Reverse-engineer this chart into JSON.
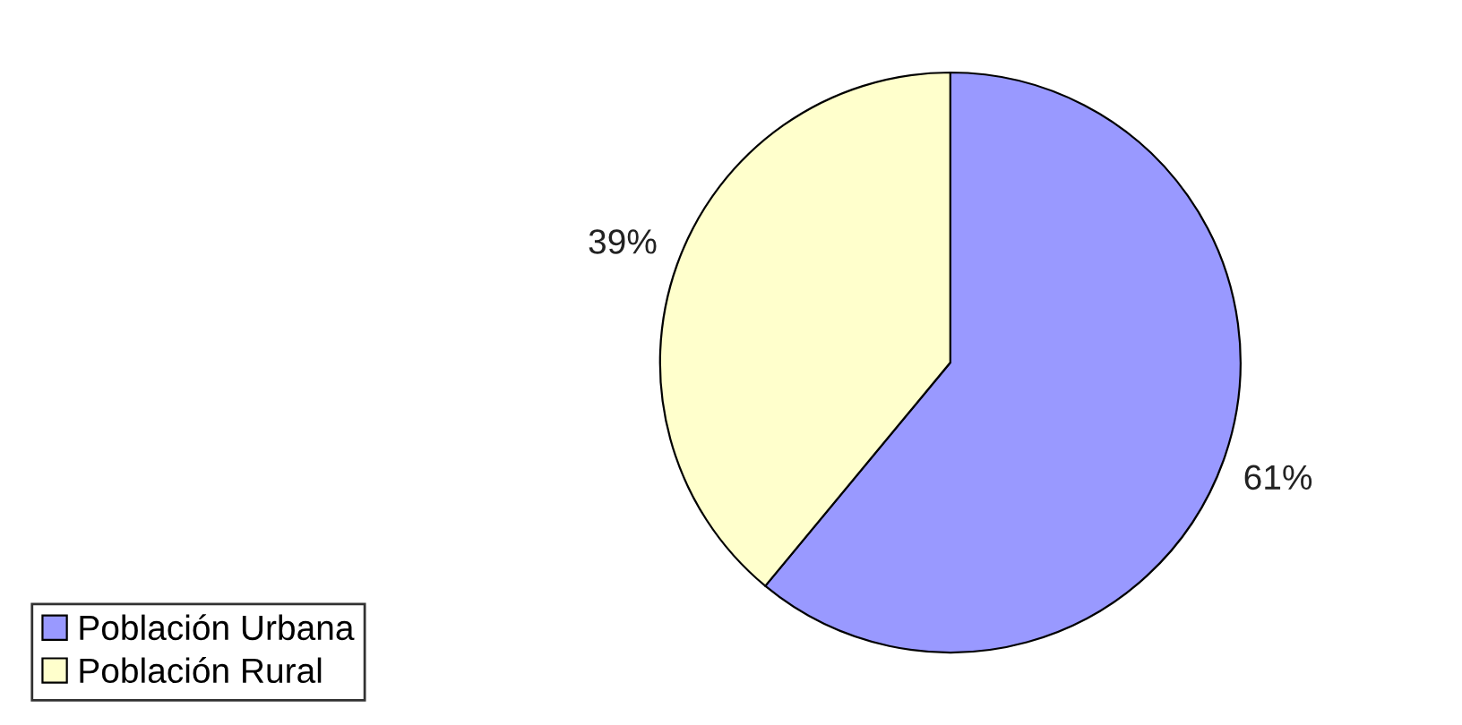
{
  "chart_data": {
    "type": "pie",
    "categories": [
      "Población Urbana",
      "Población Rural"
    ],
    "values": [
      61,
      39
    ],
    "colors": [
      "#9999ff",
      "#ffffcc"
    ],
    "value_labels": [
      "61%",
      "39%"
    ],
    "legend": "bottom left"
  }
}
